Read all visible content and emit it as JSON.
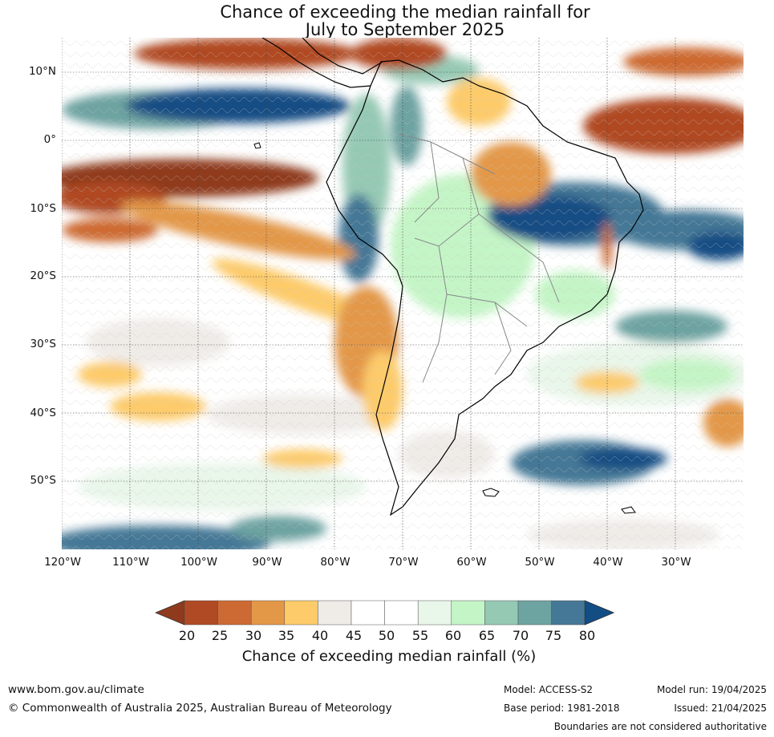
{
  "title": {
    "line1": "Chance of exceeding the median rainfall for",
    "line2": "July to September 2025"
  },
  "map": {
    "lat_labels": [
      "10°N",
      "0°",
      "10°S",
      "20°S",
      "30°S",
      "40°S",
      "50°S"
    ],
    "lon_labels": [
      "120°W",
      "110°W",
      "100°W",
      "90°W",
      "80°W",
      "70°W",
      "60°W",
      "50°W",
      "40°W",
      "30°W"
    ]
  },
  "colorbar": {
    "ticks": [
      "20",
      "25",
      "30",
      "35",
      "40",
      "45",
      "50",
      "55",
      "60",
      "65",
      "70",
      "75",
      "80"
    ],
    "colors": [
      "#8f3a1d",
      "#b04a24",
      "#cd6a33",
      "#e39848",
      "#fdcb6a",
      "#efece8",
      "#ffffff",
      "#ffffff",
      "#e9f6ea",
      "#c4f5c6",
      "#95c9b4",
      "#6da3a1",
      "#457896",
      "#124d84"
    ],
    "label": "Chance of exceeding median rainfall (%)"
  },
  "footer": {
    "url": "www.bom.gov.au/climate",
    "copyright": "© Commonwealth of Australia 2025, Australian Bureau of Meteorology",
    "model": "Model: ACCESS-S2",
    "base_period": "Base period: 1981-2018",
    "model_run": "Model run: 19/04/2025",
    "issued": "Issued: 21/04/2025",
    "disclaimer": "Boundaries are not considered authoritative"
  }
}
